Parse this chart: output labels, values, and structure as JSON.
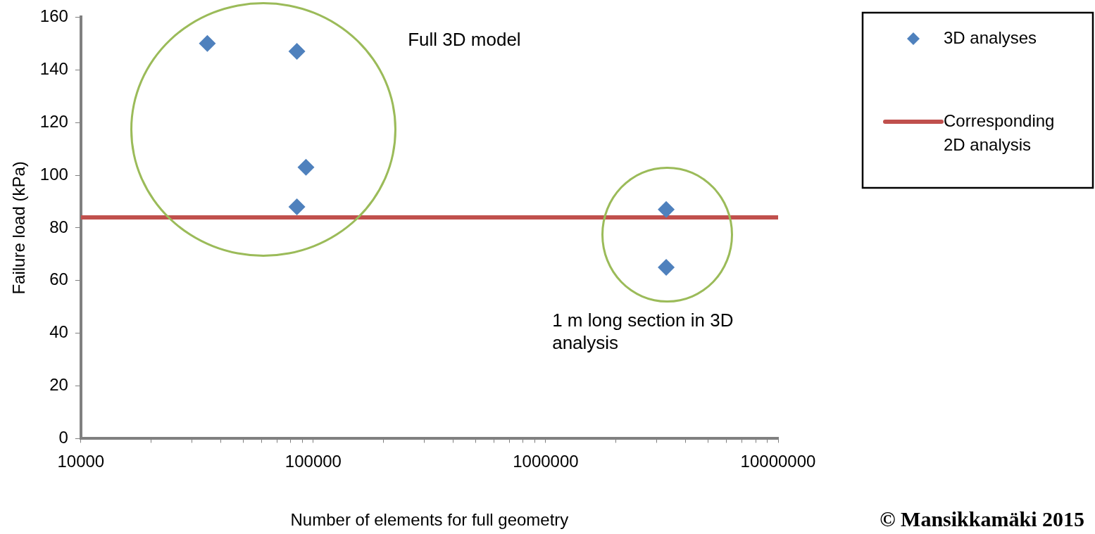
{
  "chart_data": {
    "type": "scatter",
    "xlabel": "Number of elements for full geometry",
    "ylabel": "Failure load (kPa)",
    "log": "x",
    "grid": false,
    "legend": "top right",
    "marker": "diamond",
    "xlim": [
      10000,
      10000000
    ],
    "xticks": [
      10000,
      {
        "value": 20000,
        "label": null
      },
      {
        "value": 30000,
        "label": null
      },
      {
        "value": 40000,
        "label": null
      },
      {
        "value": 50000,
        "label": null
      },
      {
        "value": 60000,
        "label": null
      },
      {
        "value": 70000,
        "label": null
      },
      {
        "value": 80000,
        "label": null
      },
      {
        "value": 90000,
        "label": null
      },
      100000,
      {
        "value": 200000,
        "label": null
      },
      {
        "value": 300000,
        "label": null
      },
      {
        "value": 400000,
        "label": null
      },
      {
        "value": 500000,
        "label": null
      },
      {
        "value": 600000,
        "label": null
      },
      {
        "value": 700000,
        "label": null
      },
      {
        "value": 800000,
        "label": null
      },
      {
        "value": 900000,
        "label": null
      },
      1000000,
      {
        "value": 2000000,
        "label": null
      },
      {
        "value": 3000000,
        "label": null
      },
      {
        "value": 4000000,
        "label": null
      },
      {
        "value": 5000000,
        "label": null
      },
      {
        "value": 6000000,
        "label": null
      },
      {
        "value": 7000000,
        "label": null
      },
      {
        "value": 8000000,
        "label": null
      },
      {
        "value": 9000000,
        "label": null
      },
      10000000
    ],
    "ylim": [
      0,
      160
    ],
    "yticks": [
      0,
      20,
      40,
      60,
      80,
      100,
      120,
      140,
      160
    ],
    "series": [
      {
        "name": "3D analyses",
        "color": "#4f81bd",
        "x": [
          35000,
          85000,
          93000,
          85000,
          3300000,
          3300000
        ],
        "values": [
          150,
          147,
          103,
          88,
          87,
          65
        ]
      },
      {
        "name": "Corresponding 2D analysis",
        "type": "line",
        "color": "#c0504d",
        "line_style": "solid",
        "marker": "none",
        "x": [
          10000,
          10000000
        ],
        "values": [
          84,
          84
        ]
      }
    ],
    "annotations": [
      "Full 3D model",
      "1 m long section in 3D analysis",
      "© Mansikkamäki 2015"
    ]
  }
}
